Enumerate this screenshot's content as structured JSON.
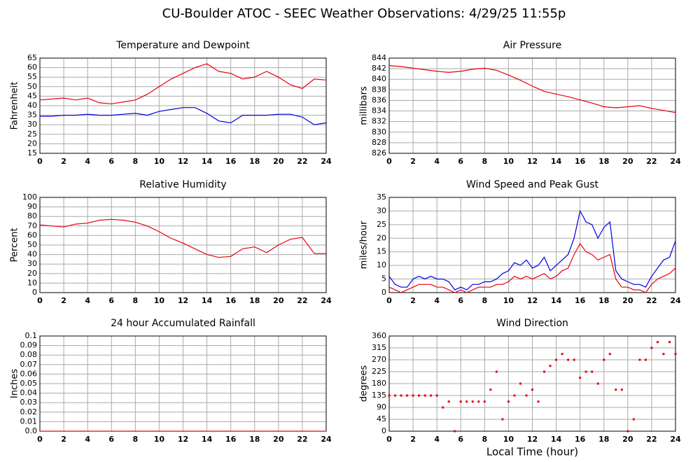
{
  "title": "CU-Boulder ATOC - SEEC Weather Observations: 4/29/25 11:55p",
  "chart_data": [
    {
      "type": "line",
      "title": "Temperature and Dewpoint",
      "ylabel": "Fahrenheit",
      "x": [
        0,
        1,
        2,
        3,
        4,
        5,
        6,
        7,
        8,
        9,
        10,
        11,
        12,
        13,
        14,
        15,
        16,
        17,
        18,
        19,
        20,
        21,
        22,
        23,
        24
      ],
      "series": [
        {
          "color": "#e8000b",
          "values": [
            43,
            43.5,
            44,
            43,
            44,
            41.5,
            41,
            42,
            43,
            46,
            50,
            54,
            57,
            60,
            62,
            58,
            57,
            54,
            55,
            58,
            55,
            51,
            49,
            54,
            53.5
          ]
        },
        {
          "color": "#0000e0",
          "values": [
            34.5,
            34.5,
            35,
            35,
            35.5,
            35,
            35,
            35.5,
            36,
            35,
            37,
            38,
            39,
            39,
            36,
            32,
            31,
            35,
            35,
            35,
            35.5,
            35.5,
            34,
            30,
            31
          ]
        }
      ],
      "xlim": [
        0,
        24
      ],
      "xticks": [
        0,
        2,
        4,
        6,
        8,
        10,
        12,
        14,
        16,
        18,
        20,
        22,
        24
      ],
      "ylim": [
        15,
        65
      ],
      "yticks": [
        15,
        20,
        25,
        30,
        35,
        40,
        45,
        50,
        55,
        60,
        65
      ],
      "grid": true
    },
    {
      "type": "line",
      "title": "Air Pressure",
      "ylabel": "millibars",
      "x": [
        0,
        1,
        2,
        3,
        4,
        5,
        6,
        7,
        8,
        9,
        10,
        11,
        12,
        13,
        14,
        15,
        16,
        17,
        18,
        19,
        20,
        21,
        22,
        23,
        24
      ],
      "series": [
        {
          "color": "#e8000b",
          "values": [
            842.6,
            842.4,
            842.1,
            841.8,
            841.5,
            841.3,
            841.5,
            841.9,
            842.1,
            841.7,
            840.8,
            839.8,
            838.7,
            837.7,
            837.2,
            836.7,
            836.1,
            835.5,
            834.8,
            834.6,
            834.8,
            835,
            834.5,
            834.1,
            833.7
          ]
        }
      ],
      "xlim": [
        0,
        24
      ],
      "xticks": [
        0,
        2,
        4,
        6,
        8,
        10,
        12,
        14,
        16,
        18,
        20,
        22,
        24
      ],
      "ylim": [
        826,
        844
      ],
      "yticks": [
        826,
        828,
        830,
        832,
        834,
        836,
        838,
        840,
        842,
        844
      ],
      "grid": true
    },
    {
      "type": "line",
      "title": "Relative Humidity",
      "ylabel": "Percent",
      "x": [
        0,
        1,
        2,
        3,
        4,
        5,
        6,
        7,
        8,
        9,
        10,
        11,
        12,
        13,
        14,
        15,
        16,
        17,
        18,
        19,
        20,
        21,
        22,
        23,
        24
      ],
      "series": [
        {
          "color": "#e8000b",
          "values": [
            71,
            70,
            69,
            72,
            73,
            76,
            77,
            76,
            74,
            70,
            64,
            57,
            52,
            46,
            40,
            37,
            38,
            46,
            48,
            42,
            50,
            56,
            58,
            41,
            41
          ]
        }
      ],
      "xlim": [
        0,
        24
      ],
      "xticks": [
        0,
        2,
        4,
        6,
        8,
        10,
        12,
        14,
        16,
        18,
        20,
        22,
        24
      ],
      "ylim": [
        0,
        100
      ],
      "yticks": [
        0,
        10,
        20,
        30,
        40,
        50,
        60,
        70,
        80,
        90,
        100
      ],
      "grid": true
    },
    {
      "type": "line",
      "title": "Wind Speed and Peak Gust",
      "ylabel": "miles/hour",
      "x": [
        0,
        0.5,
        1,
        1.5,
        2,
        2.5,
        3,
        3.5,
        4,
        4.5,
        5,
        5.5,
        6,
        6.5,
        7,
        7.5,
        8,
        8.5,
        9,
        9.5,
        10,
        10.5,
        11,
        11.5,
        12,
        12.5,
        13,
        13.5,
        14,
        14.5,
        15,
        15.5,
        16,
        16.5,
        17,
        17.5,
        18,
        18.5,
        19,
        19.5,
        20,
        20.5,
        21,
        21.5,
        22,
        22.5,
        23,
        23.5,
        24
      ],
      "series": [
        {
          "color": "#0000e0",
          "values": [
            6,
            3,
            2,
            2,
            5,
            6,
            5,
            6,
            5,
            5,
            4,
            1,
            2,
            1,
            3,
            3,
            4,
            4,
            5,
            7,
            8,
            11,
            10,
            12,
            9,
            10,
            13,
            8,
            10,
            12,
            14,
            20,
            30,
            26,
            25,
            20,
            24,
            26,
            8,
            5,
            4,
            3,
            3,
            2,
            6,
            9,
            12,
            13,
            19
          ]
        },
        {
          "color": "#e8000b",
          "values": [
            2,
            1,
            0,
            1,
            2,
            3,
            3,
            3,
            2,
            2,
            1,
            0,
            1,
            0,
            1,
            2,
            2,
            2,
            3,
            3,
            4,
            6,
            5,
            6,
            5,
            6,
            7,
            5,
            6,
            8,
            9,
            14,
            18,
            15,
            14,
            12,
            13,
            14,
            5,
            2,
            2,
            1,
            1,
            0,
            3,
            5,
            6,
            7,
            9
          ]
        }
      ],
      "xlim": [
        0,
        24
      ],
      "xticks": [
        0,
        2,
        4,
        6,
        8,
        10,
        12,
        14,
        16,
        18,
        20,
        22,
        24
      ],
      "ylim": [
        0,
        35
      ],
      "yticks": [
        0,
        5,
        10,
        15,
        20,
        25,
        30,
        35
      ],
      "grid": true
    },
    {
      "type": "line",
      "title": "24 hour Accumulated Rainfall",
      "ylabel": "Inches",
      "x": [
        0,
        24
      ],
      "series": [
        {
          "color": "#e8000b",
          "values": [
            0,
            0
          ]
        }
      ],
      "xlim": [
        0,
        24
      ],
      "xticks": [
        0,
        2,
        4,
        6,
        8,
        10,
        12,
        14,
        16,
        18,
        20,
        22,
        24
      ],
      "ylim": [
        0,
        0.1
      ],
      "yticks": [
        {
          "value": 0,
          "label": "0.0"
        },
        0.01,
        0.02,
        0.03,
        0.04,
        0.05,
        0.06,
        0.07,
        0.08,
        0.09,
        0.1
      ],
      "grid": true
    },
    {
      "type": "scatter",
      "title": "Wind Direction",
      "ylabel": "degrees",
      "xlabel": "Local Time (hour)",
      "x": [
        0,
        0.5,
        1,
        1.5,
        2,
        2.5,
        3,
        3.5,
        4,
        4.5,
        5,
        5.5,
        6,
        6.5,
        7,
        7.5,
        8,
        8.5,
        9,
        9.5,
        10,
        10.5,
        11,
        11.5,
        12,
        12.5,
        13,
        13.5,
        14,
        14.5,
        15,
        15.5,
        16,
        16.5,
        17,
        17.5,
        18,
        18.5,
        19,
        19.5,
        20,
        20.5,
        21,
        21.5,
        22,
        22.5,
        23,
        23.5,
        24
      ],
      "series": [
        {
          "color": "#e8000b",
          "values": [
            135,
            135,
            135,
            135,
            135,
            135,
            135,
            135,
            135,
            90,
            112,
            0,
            112,
            112,
            112,
            112,
            112,
            157,
            225,
            45,
            112,
            135,
            180,
            135,
            157,
            112,
            225,
            247,
            270,
            292,
            270,
            270,
            202,
            225,
            225,
            180,
            270,
            292,
            157,
            157,
            0,
            45,
            270,
            270,
            315,
            337,
            292,
            337,
            292
          ]
        }
      ],
      "xlim": [
        0,
        24
      ],
      "xticks": [
        0,
        2,
        4,
        6,
        8,
        10,
        12,
        14,
        16,
        18,
        20,
        22,
        24
      ],
      "ylim": [
        0,
        360
      ],
      "yticks": [
        0,
        45,
        90,
        135,
        180,
        225,
        270,
        315,
        360
      ],
      "grid": true
    }
  ]
}
